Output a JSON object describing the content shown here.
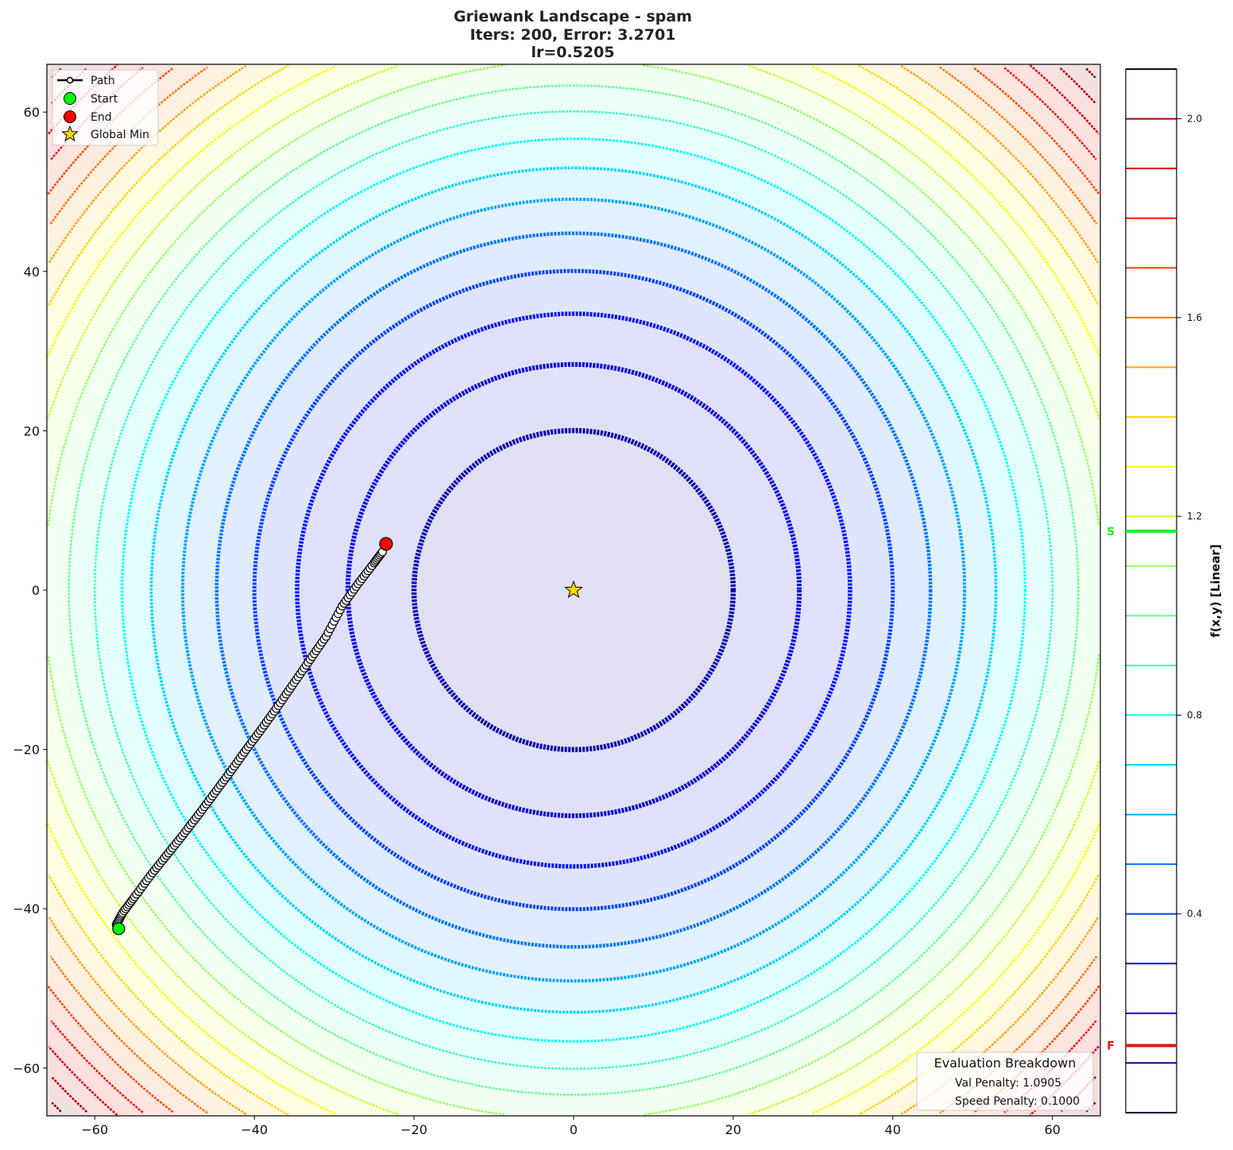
{
  "chart_data": {
    "type": "contour",
    "title_lines": [
      "Griewank Landscape - spam",
      "Iters: 200, Error: 3.2701",
      "lr=0.5205"
    ],
    "xlim": [
      -66,
      66
    ],
    "ylim": [
      -66,
      66
    ],
    "x_ticks": [
      -60,
      -40,
      -20,
      0,
      20,
      40,
      60
    ],
    "y_ticks": [
      -60,
      -40,
      -20,
      0,
      20,
      40,
      60
    ],
    "x_tick_labels": [
      "−60",
      "−40",
      "−20",
      "0",
      "20",
      "40",
      "60"
    ],
    "y_tick_labels": [
      "−60",
      "−40",
      "−20",
      "0",
      "20",
      "40",
      "60"
    ],
    "colormap": "jet",
    "contour_levels": [
      0.0,
      0.1,
      0.2,
      0.3,
      0.4,
      0.5,
      0.6,
      0.7,
      0.8,
      0.9,
      1.0,
      1.1,
      1.2,
      1.3,
      1.4,
      1.5,
      1.6,
      1.7,
      1.8,
      1.9,
      2.0,
      2.1
    ],
    "colorbar": {
      "label": "f(x,y) [Linear]",
      "range": [
        0.0,
        2.1
      ],
      "ticks": [
        0.4,
        0.8,
        1.2,
        1.6,
        2.0
      ],
      "tick_labels": [
        "0.4",
        "0.8",
        "1.2",
        "1.6",
        "2.0"
      ],
      "markers": [
        {
          "label": "S",
          "value": 1.17,
          "color": "#22ee22"
        },
        {
          "label": "F",
          "value": 0.135,
          "color": "#ee1111"
        }
      ]
    },
    "path": [
      [
        -57.3,
        -42.0
      ],
      [
        -56.5,
        -40.5
      ],
      [
        -55.0,
        -38.5
      ],
      [
        -53.0,
        -35.8
      ],
      [
        -51.0,
        -33.3
      ],
      [
        -49.0,
        -30.8
      ],
      [
        -47.0,
        -28.2
      ],
      [
        -45.0,
        -25.5
      ],
      [
        -43.0,
        -22.8
      ],
      [
        -41.0,
        -20.0
      ],
      [
        -39.0,
        -17.3
      ],
      [
        -37.0,
        -14.5
      ],
      [
        -35.0,
        -11.6
      ],
      [
        -33.0,
        -8.7
      ],
      [
        -31.0,
        -5.8
      ],
      [
        -29.0,
        -2.0
      ],
      [
        -27.0,
        0.8
      ],
      [
        -25.0,
        3.4
      ],
      [
        -23.8,
        5.0
      ]
    ],
    "start": [
      -57.0,
      -42.5
    ],
    "end": [
      -23.5,
      5.8
    ],
    "global_min": [
      0,
      0
    ],
    "legend": {
      "position": "upper-left",
      "items": [
        {
          "label": "Path",
          "marker": "line-circle",
          "color": "#000000"
        },
        {
          "label": "Start",
          "marker": "circle",
          "color": "#00ff00"
        },
        {
          "label": "End",
          "marker": "circle",
          "color": "#ff0000"
        },
        {
          "label": "Global Min",
          "marker": "star",
          "color": "#ffd700"
        }
      ]
    },
    "evaluation_box": {
      "title": "Evaluation Breakdown",
      "lines": [
        "Val Penalty: 1.0905",
        "Speed Penalty: 0.1000"
      ]
    }
  }
}
